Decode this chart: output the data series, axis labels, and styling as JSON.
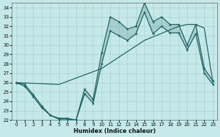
{
  "xlabel": "Humidex (Indice chaleur)",
  "xlim": [
    -0.5,
    23.5
  ],
  "ylim": [
    22,
    34.5
  ],
  "yticks": [
    22,
    23,
    24,
    25,
    26,
    27,
    28,
    29,
    30,
    31,
    32,
    33,
    34
  ],
  "xticks": [
    0,
    1,
    2,
    3,
    4,
    5,
    6,
    7,
    8,
    9,
    10,
    11,
    12,
    13,
    14,
    15,
    16,
    17,
    18,
    19,
    20,
    21,
    22,
    23
  ],
  "bg_color": "#c5e8e8",
  "grid_color": "#a8d0d0",
  "line_color": "#1a6060",
  "upper_x": [
    0,
    1,
    2,
    3,
    4,
    5,
    6,
    7,
    8,
    9,
    10,
    11,
    12,
    13,
    14,
    15,
    16,
    17,
    18,
    19,
    20,
    21,
    22,
    23
  ],
  "upper_y": [
    26.0,
    25.8,
    24.7,
    23.5,
    22.5,
    22.2,
    22.2,
    22.0,
    25.3,
    24.2,
    29.2,
    33.0,
    32.5,
    31.7,
    32.0,
    34.5,
    32.5,
    33.0,
    32.2,
    32.2,
    30.0,
    32.2,
    27.5,
    26.2
  ],
  "lower_x": [
    0,
    1,
    2,
    3,
    4,
    5,
    6,
    7,
    8,
    9,
    10,
    11,
    12,
    13,
    14,
    15,
    16,
    17,
    18,
    19,
    20,
    21,
    22,
    23
  ],
  "lower_y": [
    26.0,
    25.6,
    24.5,
    23.3,
    22.5,
    22.1,
    22.1,
    22.0,
    24.8,
    23.8,
    28.0,
    31.5,
    31.0,
    30.5,
    31.2,
    33.5,
    31.2,
    32.0,
    31.3,
    31.3,
    29.5,
    31.2,
    27.0,
    25.8
  ],
  "trend_x": [
    0,
    5,
    10,
    15,
    19,
    20,
    21,
    22,
    23
  ],
  "trend_y": [
    26.0,
    25.8,
    27.5,
    30.5,
    32.0,
    32.2,
    32.2,
    31.8,
    26.0
  ]
}
